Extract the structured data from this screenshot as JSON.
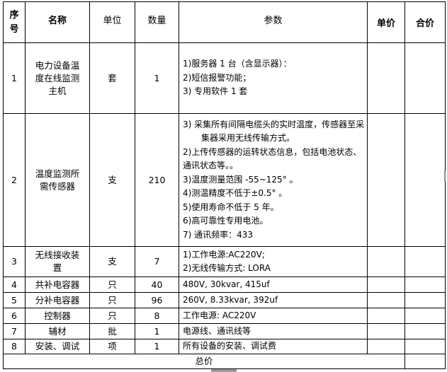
{
  "header": {
    "seq": "序号",
    "name": "名称",
    "unit": "单位",
    "qty": "数量",
    "params": "参数",
    "price": "单价",
    "total": "合价"
  },
  "rows": [
    {
      "seq": "1",
      "name": "电力设备温度在线监测主机",
      "unit": "套",
      "qty": "1",
      "params": [
        "1)服务器 1 台（含显示器）：",
        "2)短信报警功能；",
        "3) 专用软件 1 套"
      ]
    },
    {
      "seq": "2",
      "name": "温度监测所需传感器",
      "unit": "支",
      "qty": "210",
      "params": [
        "3)  采集所有间隔电缆头的实时温度，传感器至采集器采用无线传输方式。",
        "2)上传传感器的运转状态信息，包括电池状态、通讯状态等。。",
        "3)温度测量范围 -55~125° 。",
        "4)测温精度不低于±0.5° 。",
        "5)使用寿命不低于 5 年。",
        "6)高可靠性专用电池。",
        "7) 通讯频率：433"
      ]
    },
    {
      "seq": "3",
      "name": "无线接收装置",
      "unit": "支",
      "qty": "7",
      "params": [
        "1)工作电源:AC220V;",
        "2)无线传输方式: LORA"
      ]
    },
    {
      "seq": "4",
      "name": "共补电容器",
      "unit": "只",
      "qty": "40",
      "params": [
        "480V, 30kvar, 415uf"
      ]
    },
    {
      "seq": "5",
      "name": "分补电容器",
      "unit": "只",
      "qty": "96",
      "params": [
        "260V, 8.33kvar, 392uf"
      ]
    },
    {
      "seq": "6",
      "name": "控制器",
      "unit": "只",
      "qty": "8",
      "params": [
        "工作电源: AC220V"
      ]
    },
    {
      "seq": "7",
      "name": "辅材",
      "unit": "批",
      "qty": "1",
      "params": [
        "电源线、通讯线等"
      ]
    },
    {
      "seq": "8",
      "name": "安装、调试",
      "unit": "项",
      "qty": "1",
      "params": [
        "所有设备的安装、调试费"
      ]
    }
  ],
  "footer": {
    "label": "总价"
  }
}
